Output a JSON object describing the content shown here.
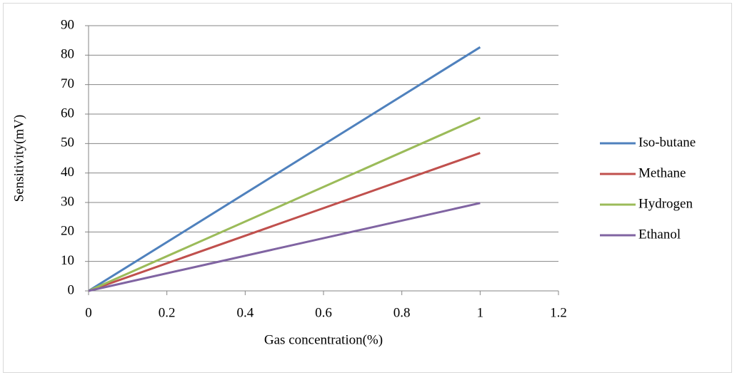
{
  "chart_data": {
    "type": "line",
    "x_label": "Gas concentration(%)",
    "y_label": "Sensitivity(mV)",
    "x": [
      0,
      1
    ],
    "series": [
      {
        "name": "Iso-butane",
        "color": "#4f81bd",
        "values": [
          0,
          82.7
        ]
      },
      {
        "name": "Methane",
        "color": "#c0504d",
        "values": [
          0,
          46.8
        ]
      },
      {
        "name": "Hydrogen",
        "color": "#9bbb59",
        "values": [
          0,
          58.8
        ]
      },
      {
        "name": "Ethanol",
        "color": "#8064a2",
        "values": [
          0,
          29.8
        ]
      }
    ],
    "xlim": [
      0,
      1.2
    ],
    "xticks": [
      0,
      0.2,
      0.4,
      0.6,
      0.8,
      1,
      1.2
    ],
    "ylim": [
      0,
      90
    ],
    "yticks": [
      0,
      10,
      20,
      30,
      40,
      50,
      60,
      70,
      80,
      90
    ],
    "grid": true,
    "legend": "right"
  }
}
